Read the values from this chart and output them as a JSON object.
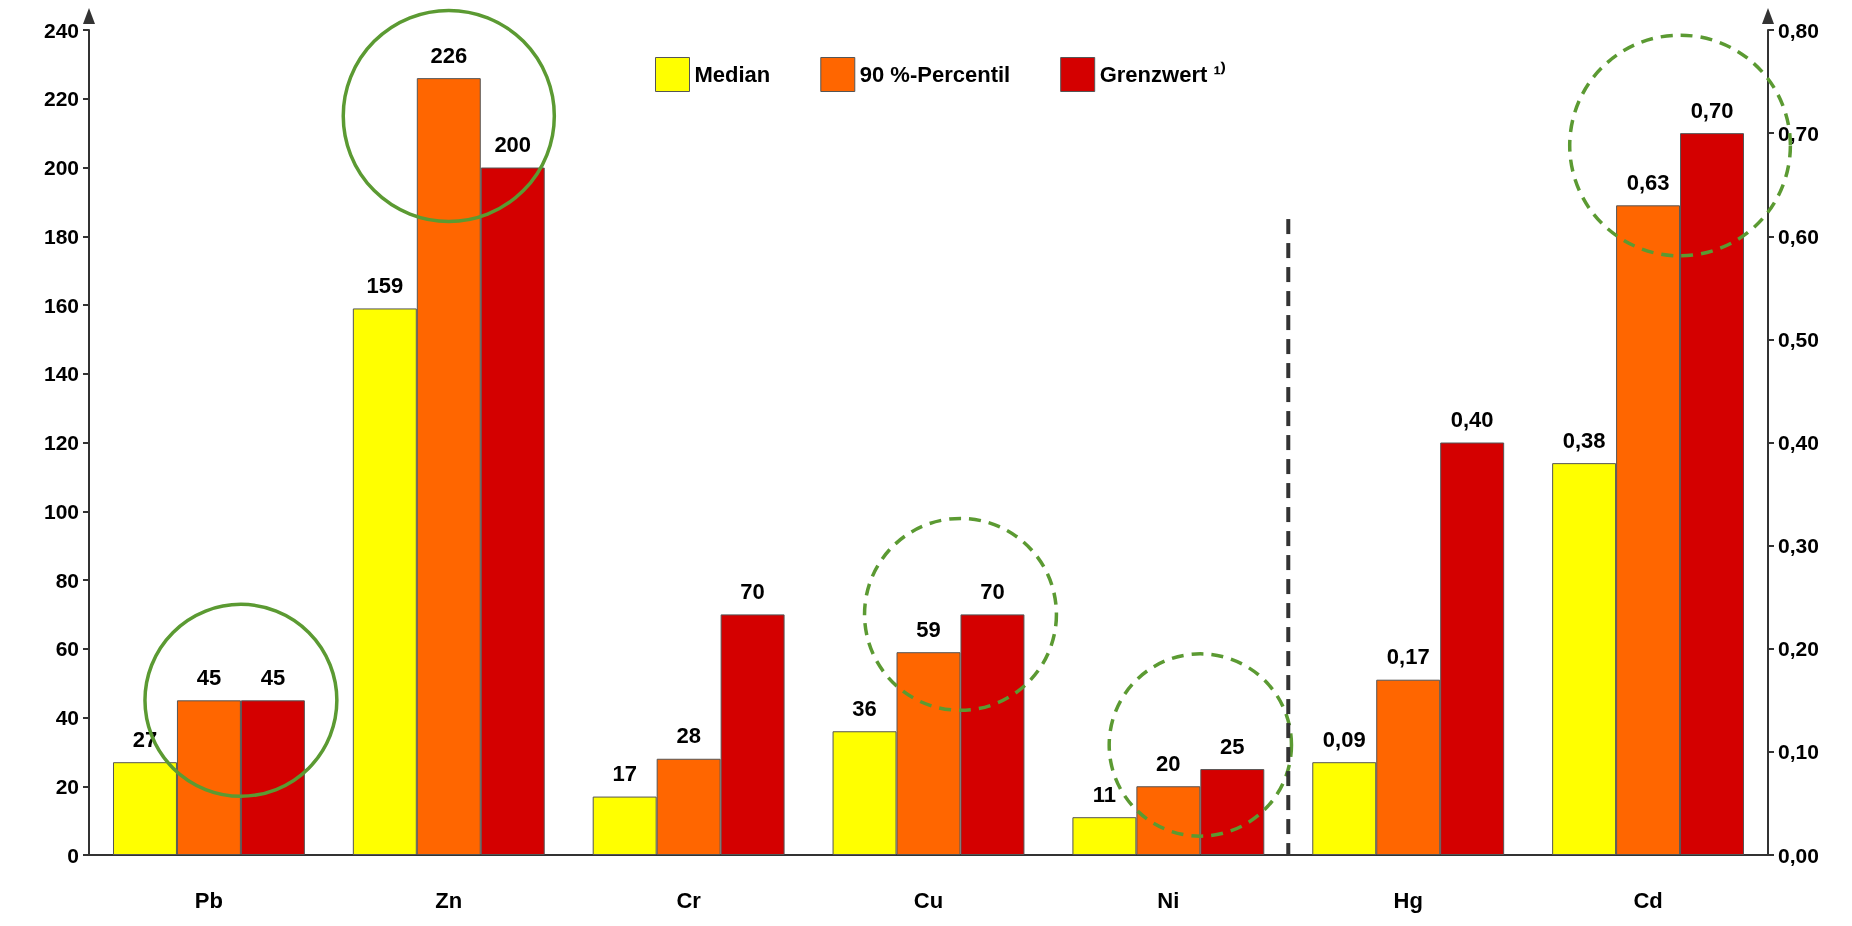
{
  "chart_data": {
    "type": "bar",
    "categories": [
      "Pb",
      "Zn",
      "Cr",
      "Cu",
      "Ni",
      "Hg",
      "Cd"
    ],
    "series": [
      {
        "name": "Median",
        "color": "#ffff00",
        "values": [
          27,
          159,
          17,
          36,
          11,
          null,
          null
        ],
        "value_labels": [
          "27",
          "159",
          "17",
          "36",
          "11",
          null,
          null
        ]
      },
      {
        "name": "90 %-Percentil",
        "color": "#ff6600",
        "values": [
          45,
          226,
          28,
          59,
          20,
          null,
          null
        ],
        "value_labels": [
          "45",
          "226",
          "28",
          "59",
          "20",
          null,
          null
        ]
      },
      {
        "name": "Grenzwert ¹⁾",
        "color": "#d40000",
        "values": [
          45,
          200,
          70,
          70,
          25,
          null,
          null
        ],
        "value_labels": [
          "45",
          "200",
          "70",
          "70",
          "25",
          null,
          null
        ]
      },
      {
        "color": "#ffff00",
        "axis": "y2",
        "values": [
          null,
          null,
          null,
          null,
          null,
          0.09,
          0.38
        ],
        "value_labels": [
          null,
          null,
          null,
          null,
          null,
          "0,09",
          "0,38"
        ]
      },
      {
        "color": "#ff6600",
        "axis": "y2",
        "values": [
          null,
          null,
          null,
          null,
          null,
          0.17,
          0.63
        ],
        "value_labels": [
          null,
          null,
          null,
          null,
          null,
          "0,17",
          "0,63"
        ]
      },
      {
        "color": "#d40000",
        "axis": "y2",
        "values": [
          null,
          null,
          null,
          null,
          null,
          0.4,
          0.7
        ],
        "value_labels": [
          null,
          null,
          null,
          null,
          null,
          "0,40",
          "0,70"
        ]
      }
    ],
    "ylim": [
      0,
      240
    ],
    "yticks": [
      0,
      20,
      40,
      60,
      80,
      100,
      120,
      140,
      160,
      180,
      200,
      220,
      240
    ],
    "y2lim": [
      0,
      0.8
    ],
    "y2ticks": [
      {
        "value": 0,
        "label": "0,00"
      },
      {
        "value": 0.1,
        "label": "0,10"
      },
      {
        "value": 0.2,
        "label": "0,20"
      },
      {
        "value": 0.3,
        "label": "0,30"
      },
      {
        "value": 0.4,
        "label": "0,40"
      },
      {
        "value": 0.5,
        "label": "0,50"
      },
      {
        "value": 0.6,
        "label": "0,60"
      },
      {
        "value": 0.7,
        "label": "0,70"
      },
      {
        "value": 0.8,
        "label": "0,80"
      }
    ],
    "grid": false,
    "legend": "top"
  }
}
